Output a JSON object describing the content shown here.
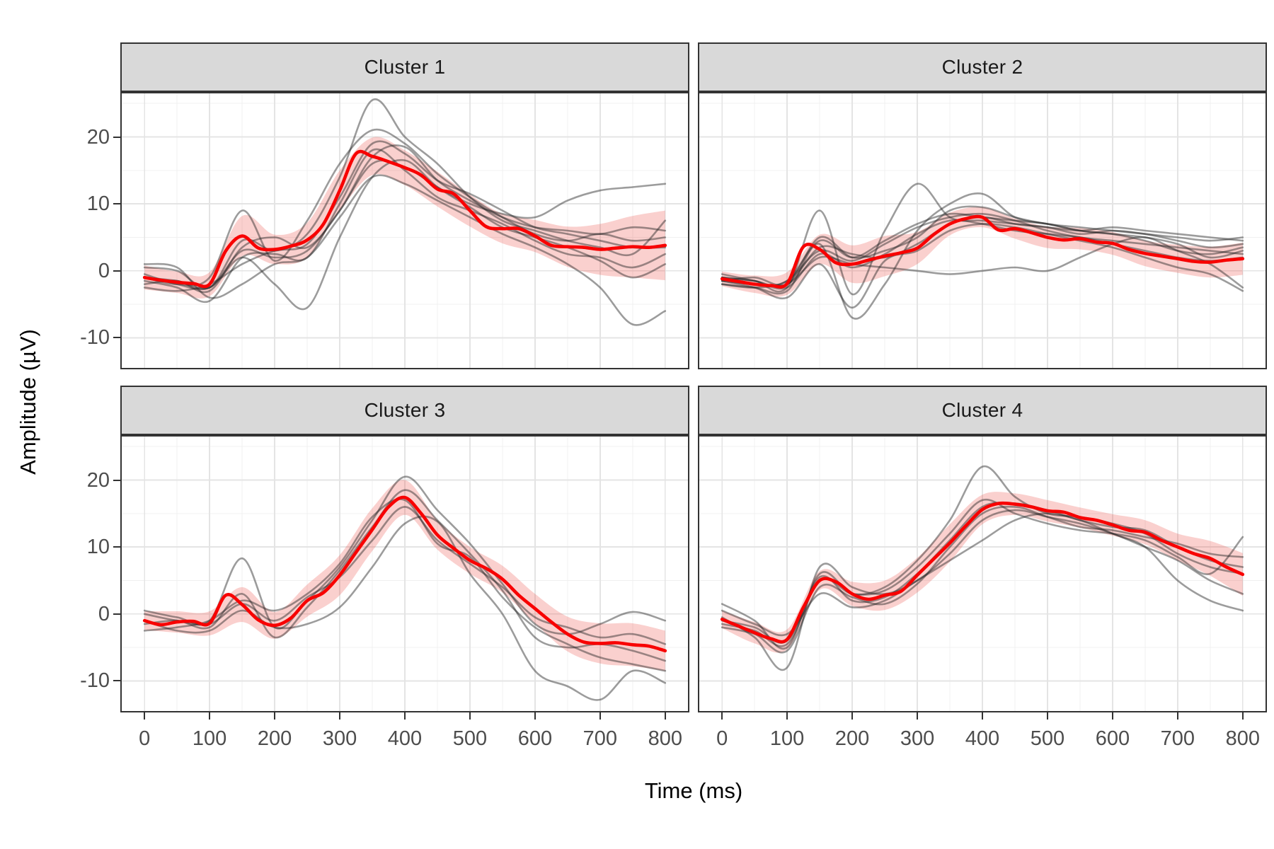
{
  "chart_data": {
    "type": "line",
    "xlabel": "Time (ms)",
    "ylabel": "Amplitude (µV)",
    "x_domain": [
      -35,
      835
    ],
    "y_domain": [
      -14.5,
      26.5
    ],
    "x_ticks": [
      0,
      100,
      200,
      300,
      400,
      500,
      600,
      700,
      800
    ],
    "x_minor_ticks": [
      50,
      150,
      250,
      350,
      450,
      550,
      650,
      750
    ],
    "y_ticks": [
      -10,
      0,
      10,
      20
    ],
    "y_minor_ticks": [
      -5,
      5,
      15,
      25
    ],
    "grid": "on",
    "legend_position": "none",
    "mean_t_step": 25,
    "trace_t_step": 50,
    "colors": {
      "mean_line": "#f80000",
      "ribbon_fill": "rgba(230,40,30,0.22)",
      "subject_trace": "rgba(35,35,35,0.45)",
      "grid_major": "#e4e4e4",
      "grid_minor": "#f0f0f0",
      "panel_border": "#333333",
      "strip_bg": "#d9d9d9",
      "tick_label": "#4d4d4d"
    },
    "clusters": [
      {
        "label": "Cluster 1",
        "mean": [
          -1.0,
          -1.4,
          -1.7,
          -1.9,
          -2.0,
          3.0,
          5.2,
          3.4,
          3.2,
          3.7,
          4.6,
          7.0,
          12.0,
          17.5,
          17.1,
          16.3,
          15.4,
          14.3,
          12.2,
          11.5,
          9.0,
          6.6,
          6.3,
          6.3,
          5.2,
          3.8,
          3.6,
          3.5,
          3.2,
          3.4,
          3.6,
          3.5,
          3.8
        ],
        "band": [
          1.8,
          1.6,
          1.8,
          3.0,
          2.2,
          2.6,
          3.0,
          2.8,
          2.6,
          2.6,
          2.4,
          2.2,
          2.4,
          3.0,
          3.8,
          4.6,
          5.2
        ],
        "traces": [
          [
            0.5,
            0,
            -2.5,
            4.5,
            3,
            5.5,
            14,
            25.5,
            20,
            16,
            11,
            7.5,
            6,
            4.5,
            3.5,
            2.5,
            7.5
          ],
          [
            -1,
            -2,
            -1,
            9,
            1.5,
            7.5,
            16,
            21,
            19,
            14.5,
            11,
            8,
            5.5,
            4.5,
            5.5,
            4.5,
            5
          ],
          [
            -2,
            -1.5,
            -3,
            3.5,
            5,
            3.5,
            9,
            17,
            18.5,
            13.5,
            10.5,
            8,
            6.5,
            6,
            5.5,
            6.5,
            6
          ],
          [
            -1.5,
            -2.5,
            -4.5,
            2,
            2.5,
            2,
            10,
            18,
            15,
            11,
            9,
            7,
            4.5,
            2.5,
            2,
            0.5,
            2.5
          ],
          [
            -0.5,
            -2,
            -2.5,
            2,
            -2,
            -5.5,
            5,
            14,
            16.5,
            12.5,
            9.5,
            6.5,
            5,
            3.5,
            1.5,
            -1,
            1
          ],
          [
            1,
            0.5,
            -4,
            -2,
            1,
            2,
            8,
            14,
            13,
            10.5,
            8,
            5.5,
            3.5,
            1,
            -2.5,
            -8,
            -6
          ],
          [
            -2.5,
            -3,
            -2,
            1,
            3,
            4,
            11,
            19,
            17.5,
            13.5,
            11.5,
            9,
            6.5,
            5.5,
            4.5,
            3.5,
            3.5
          ],
          [
            -1,
            -1.5,
            -2.5,
            3,
            2,
            3,
            9,
            16,
            15.5,
            12.5,
            10,
            8.5,
            8,
            10.5,
            12,
            12.5,
            13
          ]
        ]
      },
      {
        "label": "Cluster 2",
        "mean": [
          -1.2,
          -1.6,
          -2.0,
          -2.2,
          -1.9,
          3.6,
          3.2,
          1.2,
          1.0,
          1.6,
          2.2,
          2.7,
          3.4,
          5.4,
          7.0,
          7.8,
          8.0,
          6.1,
          6.3,
          5.7,
          5.0,
          4.6,
          4.8,
          4.3,
          4.1,
          3.2,
          2.6,
          2.2,
          1.8,
          1.4,
          1.3,
          1.6,
          1.8
        ],
        "band": [
          1.1,
          1.3,
          1.7,
          2.2,
          2.8,
          3.0,
          2.4,
          1.7,
          1.5,
          1.5,
          1.6,
          1.6,
          1.7,
          1.9,
          2.1,
          2.3,
          2.4
        ],
        "traces": [
          [
            -1,
            -1.5,
            -2.5,
            9,
            -3.5,
            6,
            13,
            8,
            7.5,
            7,
            6.5,
            5.5,
            6,
            5.5,
            4.5,
            3.5,
            4
          ],
          [
            -2,
            -2.5,
            -3,
            4,
            -7,
            -2,
            6,
            10,
            11.5,
            8,
            7,
            6,
            5.5,
            5,
            4,
            2,
            3
          ],
          [
            -1.5,
            -2,
            -2,
            2,
            1,
            0.5,
            0,
            -0.5,
            0,
            0.5,
            0,
            2,
            4,
            5,
            3,
            1,
            -2.5
          ],
          [
            -1,
            -1.5,
            -2,
            5,
            2,
            3,
            5,
            9,
            9.5,
            8,
            7,
            6.5,
            6,
            5.5,
            5,
            4.5,
            5
          ],
          [
            -2,
            -2.5,
            -1.5,
            3,
            1.5,
            4,
            6.5,
            8,
            8.5,
            7.5,
            6,
            5,
            4.5,
            4,
            3.5,
            3,
            2.5
          ],
          [
            -1.5,
            -1,
            -2,
            3.5,
            2.5,
            2,
            4,
            7,
            8,
            7,
            6.5,
            6,
            6.5,
            6,
            5.5,
            5,
            4.5
          ],
          [
            -0.5,
            -1.5,
            -2.5,
            2.5,
            0.5,
            2.5,
            5.5,
            7.5,
            7,
            6,
            5.5,
            5,
            4,
            3,
            2,
            1.5,
            2
          ],
          [
            -1.5,
            -2.5,
            -4,
            1,
            -5.5,
            1.5,
            3,
            6,
            7,
            6.5,
            5.5,
            4.5,
            3.5,
            2,
            0.5,
            -0.5,
            -3
          ],
          [
            -1,
            -2,
            -1.5,
            4.5,
            2,
            4.5,
            7,
            8.5,
            8,
            7.5,
            7,
            6,
            5.5,
            4.5,
            3,
            2.5,
            3.5
          ]
        ]
      },
      {
        "label": "Cluster 3",
        "mean": [
          -1.0,
          -1.6,
          -1.2,
          -1.1,
          -1.4,
          2.8,
          1.4,
          -0.9,
          -1.7,
          -0.6,
          2.0,
          3.2,
          5.8,
          9.2,
          12.6,
          16.0,
          17.4,
          15.0,
          11.8,
          9.8,
          8.0,
          6.8,
          5.2,
          2.8,
          0.8,
          -1.2,
          -3.0,
          -4.2,
          -4.4,
          -4.3,
          -4.6,
          -4.8,
          -5.5
        ],
        "band": [
          1.4,
          1.6,
          1.8,
          2.6,
          2.0,
          2.4,
          3.0,
          3.2,
          2.6,
          2.2,
          2.0,
          2.0,
          2.2,
          2.6,
          3.0,
          3.2,
          3.0
        ],
        "traces": [
          [
            0.5,
            -0.5,
            -1,
            8.3,
            -2,
            2,
            7,
            14,
            20.5,
            15.5,
            10.5,
            4.5,
            -1.5,
            -3,
            -1.5,
            0.3,
            -1
          ],
          [
            -1.5,
            -1,
            -2,
            3,
            -3.5,
            1,
            6.5,
            13,
            18.5,
            14,
            9,
            3.5,
            -3.5,
            -5,
            -4.5,
            -5.5,
            -7
          ],
          [
            -2.5,
            -2,
            -1,
            2,
            0.5,
            3,
            7.5,
            14.5,
            17,
            10.5,
            8.5,
            2.5,
            -2,
            -4.5,
            -6.5,
            -7.5,
            -8.5
          ],
          [
            -1,
            -2.5,
            -2.5,
            0.5,
            -2,
            -1.5,
            1,
            7,
            13.5,
            13.8,
            6,
            0,
            -8.5,
            -10.8,
            -12.8,
            -8.5,
            -10.3
          ],
          [
            0,
            -1,
            -1.5,
            1.5,
            -1,
            2.5,
            5.5,
            11,
            16,
            11,
            7.5,
            4,
            -0.5,
            -2,
            -3.5,
            -3,
            -4.5
          ]
        ]
      },
      {
        "label": "Cluster 4",
        "mean": [
          -0.8,
          -1.8,
          -2.8,
          -3.7,
          -3.8,
          1.0,
          5.0,
          4.8,
          3.0,
          2.2,
          2.8,
          3.4,
          5.8,
          8.2,
          10.6,
          13.2,
          15.6,
          16.5,
          16.4,
          16.0,
          15.4,
          15.2,
          14.4,
          14.0,
          13.3,
          12.5,
          12.2,
          11.0,
          10.0,
          9.0,
          8.3,
          7.0,
          5.9
        ],
        "band": [
          1.3,
          1.6,
          1.5,
          1.4,
          1.8,
          2.2,
          2.6,
          2.8,
          2.2,
          1.6,
          1.6,
          1.5,
          1.6,
          1.8,
          2.0,
          2.6,
          3.2
        ],
        "traces": [
          [
            1.5,
            -1,
            -5,
            6,
            3,
            4,
            8,
            14,
            22,
            17.5,
            15,
            14.5,
            13.5,
            12,
            9,
            7,
            6
          ],
          [
            -1,
            -2,
            -4,
            5.5,
            2,
            2.5,
            6,
            11,
            16,
            16.5,
            15.5,
            14,
            13,
            12.5,
            10,
            8,
            7
          ],
          [
            -0.5,
            -3.5,
            -8,
            7,
            4,
            3,
            5,
            9,
            14,
            15.5,
            14.5,
            13.5,
            12,
            10,
            8,
            5,
            3
          ],
          [
            -2,
            -3,
            -5.5,
            4,
            2.5,
            1.5,
            4.5,
            10,
            15,
            16,
            14.5,
            13,
            12.5,
            11.5,
            10.5,
            9,
            8.5
          ],
          [
            0.5,
            -1.5,
            -3,
            3,
            1,
            2,
            5,
            8,
            11,
            14,
            15,
            14,
            12,
            10,
            5,
            2,
            0.5
          ],
          [
            -1.5,
            -2.5,
            -4.5,
            5,
            3,
            3.5,
            7,
            12,
            17,
            15,
            13.5,
            12.5,
            12,
            11,
            8.5,
            6,
            11.5
          ]
        ]
      }
    ]
  }
}
